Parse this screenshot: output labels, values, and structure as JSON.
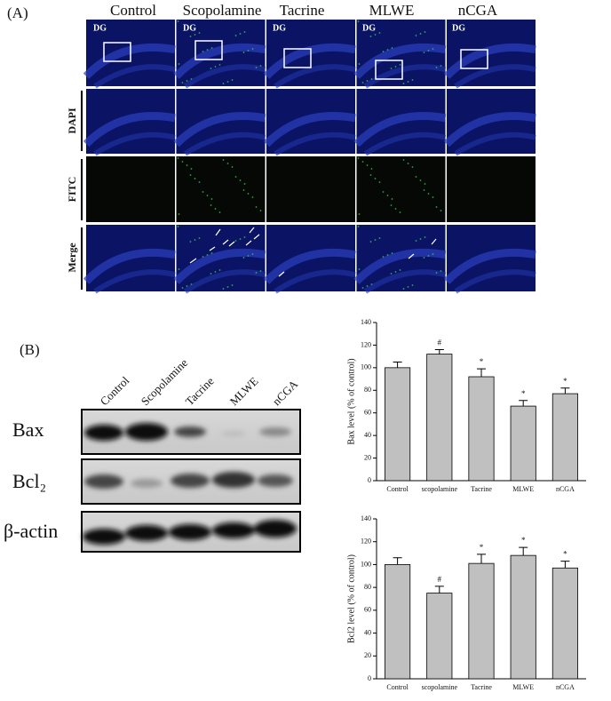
{
  "panel_a": {
    "label": "(A)",
    "columns": [
      "Control",
      "Scopolamine",
      "Tacrine",
      "MLWE",
      "nCGA"
    ],
    "rows": [
      "DAPI",
      "FITC",
      "Merge"
    ],
    "region_label": "DG"
  },
  "panel_b": {
    "label": "(B)",
    "lanes": [
      "Control",
      "Scopolamine",
      "Tacrine",
      "MLWE",
      "nCGA"
    ],
    "blots": [
      "Bax",
      "Bcl₂",
      "β-actin"
    ]
  },
  "chart_data": [
    {
      "type": "bar",
      "ylabel": "Bax level (% of control)",
      "categories": [
        "Control",
        "scopolamine",
        "Tacrine",
        "MLWE",
        "nCGA"
      ],
      "values": [
        100,
        112,
        92,
        66,
        77
      ],
      "errors": [
        5,
        4,
        7,
        5,
        5
      ],
      "annotations": [
        null,
        "#",
        "*",
        "*",
        "*"
      ],
      "color": "#c0c0c0",
      "ylim": [
        0,
        140
      ],
      "yticks": [
        0,
        20,
        40,
        60,
        80,
        100,
        120,
        140
      ]
    },
    {
      "type": "bar",
      "ylabel": "Bcl2 level (% of control)",
      "categories": [
        "Control",
        "scopolamine",
        "Tacrine",
        "MLWE",
        "nCGA"
      ],
      "values": [
        100,
        75,
        101,
        108,
        97
      ],
      "errors": [
        6,
        6,
        8,
        7,
        6
      ],
      "annotations": [
        null,
        "#",
        "*",
        "*",
        "*"
      ],
      "color": "#c0c0c0",
      "ylim": [
        0,
        140
      ],
      "yticks": [
        0,
        20,
        40,
        60,
        80,
        100,
        120,
        140
      ]
    }
  ]
}
